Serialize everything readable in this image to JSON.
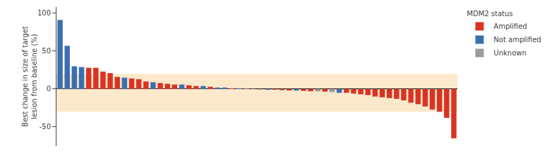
{
  "chart_data": {
    "type": "bar",
    "categories": [
      null,
      null,
      null,
      null,
      null,
      null,
      null,
      null,
      null,
      null,
      null,
      null,
      null,
      null,
      null,
      null,
      null,
      null,
      null,
      null,
      null,
      null,
      null,
      null,
      null,
      null,
      null,
      null,
      null,
      null,
      null,
      null,
      null,
      null,
      null,
      null,
      null,
      null,
      null,
      null,
      null,
      null,
      null,
      null,
      null,
      null,
      null,
      null,
      null,
      null,
      null,
      null,
      null,
      null,
      null,
      null
    ],
    "series": [
      {
        "name": "Amplified",
        "color": "#dc3220",
        "values": [
          null,
          null,
          null,
          null,
          28,
          28,
          23,
          21,
          16,
          null,
          14,
          13,
          10,
          null,
          8,
          7,
          6,
          null,
          5,
          4,
          null,
          3,
          null,
          null,
          1,
          null,
          0.5,
          null,
          -0.5,
          null,
          -1,
          -1.5,
          -2,
          null,
          -2.5,
          -3,
          null,
          -3.5,
          null,
          null,
          -5,
          -6,
          -7,
          -8,
          -10,
          -11,
          -12,
          -13,
          -15,
          -18,
          -20,
          -23,
          -27,
          -30,
          -38,
          -65
        ]
      },
      {
        "name": "Not amplified",
        "color": "#3a6faf",
        "values": [
          91,
          57,
          30,
          29,
          null,
          null,
          null,
          null,
          null,
          15,
          null,
          null,
          null,
          9,
          null,
          null,
          null,
          6,
          null,
          null,
          4,
          null,
          2,
          2,
          null,
          1,
          null,
          0,
          null,
          -1,
          null,
          null,
          null,
          -2,
          null,
          null,
          null,
          null,
          null,
          -5,
          null,
          null,
          null,
          null,
          null,
          null,
          null,
          null,
          null,
          null,
          null,
          null,
          null,
          null,
          null,
          null
        ]
      },
      {
        "name": "Unknown",
        "color": "#9b9b9b",
        "values": [
          null,
          null,
          null,
          null,
          null,
          null,
          null,
          null,
          null,
          null,
          null,
          null,
          null,
          null,
          null,
          null,
          null,
          null,
          null,
          null,
          null,
          null,
          null,
          null,
          null,
          null,
          null,
          null,
          null,
          null,
          null,
          null,
          null,
          null,
          null,
          null,
          -3,
          null,
          -4,
          null,
          null,
          null,
          null,
          null,
          null,
          null,
          null,
          null,
          null,
          null,
          null,
          null,
          null,
          null,
          null,
          null
        ]
      }
    ],
    "stacked": true,
    "ylabel": "Best change in size of target\nlesion from baseline (%)",
    "ylim": [
      -75,
      108
    ],
    "yticks": [
      -50,
      0,
      50,
      100
    ],
    "shaded_range": [
      -30,
      20
    ],
    "shaded_color": "#fce9cc",
    "legend_title": "MDM2 status",
    "legend": "upper right",
    "grid": false,
    "tick_labels": "y"
  }
}
